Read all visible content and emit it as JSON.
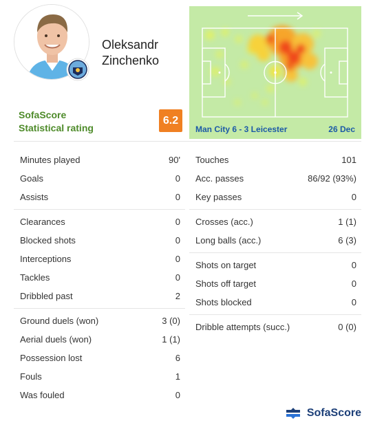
{
  "player": {
    "first_name": "Oleksandr",
    "last_name": "Zinchenko"
  },
  "rating": {
    "label_line1": "SofaScore",
    "label_line2": "Statistical rating",
    "value": "6.2",
    "color": "#f08022"
  },
  "match": {
    "teams": "Man City 6 - 3 Leicester",
    "date": "26 Dec"
  },
  "stats_left": [
    [
      {
        "label": "Minutes played",
        "value": "90'"
      },
      {
        "label": "Goals",
        "value": "0"
      },
      {
        "label": "Assists",
        "value": "0"
      }
    ],
    [
      {
        "label": "Clearances",
        "value": "0"
      },
      {
        "label": "Blocked shots",
        "value": "0"
      },
      {
        "label": "Interceptions",
        "value": "0"
      },
      {
        "label": "Tackles",
        "value": "0"
      },
      {
        "label": "Dribbled past",
        "value": "2"
      }
    ],
    [
      {
        "label": "Ground duels (won)",
        "value": "3 (0)"
      },
      {
        "label": "Aerial duels (won)",
        "value": "1 (1)"
      },
      {
        "label": "Possession lost",
        "value": "6"
      },
      {
        "label": "Fouls",
        "value": "1"
      },
      {
        "label": "Was fouled",
        "value": "0"
      }
    ]
  ],
  "stats_right": [
    [
      {
        "label": "Touches",
        "value": "101"
      },
      {
        "label": "Acc. passes",
        "value": "86/92 (93%)"
      },
      {
        "label": "Key passes",
        "value": "0"
      }
    ],
    [
      {
        "label": "Crosses (acc.)",
        "value": "1 (1)"
      },
      {
        "label": "Long balls (acc.)",
        "value": "6 (3)"
      }
    ],
    [
      {
        "label": "Shots on target",
        "value": "0"
      },
      {
        "label": "Shots off target",
        "value": "0"
      },
      {
        "label": "Shots blocked",
        "value": "0"
      }
    ],
    [
      {
        "label": "Dribble attempts (succ.)",
        "value": "0 (0)"
      }
    ]
  ],
  "footer": {
    "brand": "SofaScore"
  },
  "colors": {
    "rating_label": "#4e8b2a",
    "match_info": "#1c5aa6",
    "pitch": "#c4eaa6",
    "brand": "#1c3f78"
  },
  "icons": {
    "attack_direction": "arrow-right-icon",
    "club_badge": "man-city-badge-icon",
    "brand_logo": "sofascore-logo-icon"
  }
}
